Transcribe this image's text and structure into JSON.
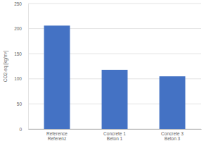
{
  "chart_data": {
    "type": "bar",
    "ylabel": "CO2-eq [kg/m²]",
    "categories": [
      "Reference\nReferenz",
      "Concrete 1\nBeton 1",
      "Concrete 3\nBeton 3"
    ],
    "values": [
      206,
      118,
      105
    ],
    "color": "#4472c4",
    "ylim": [
      0,
      250
    ],
    "yticks": [
      0,
      50,
      100,
      150,
      200,
      250
    ],
    "grid": true
  }
}
